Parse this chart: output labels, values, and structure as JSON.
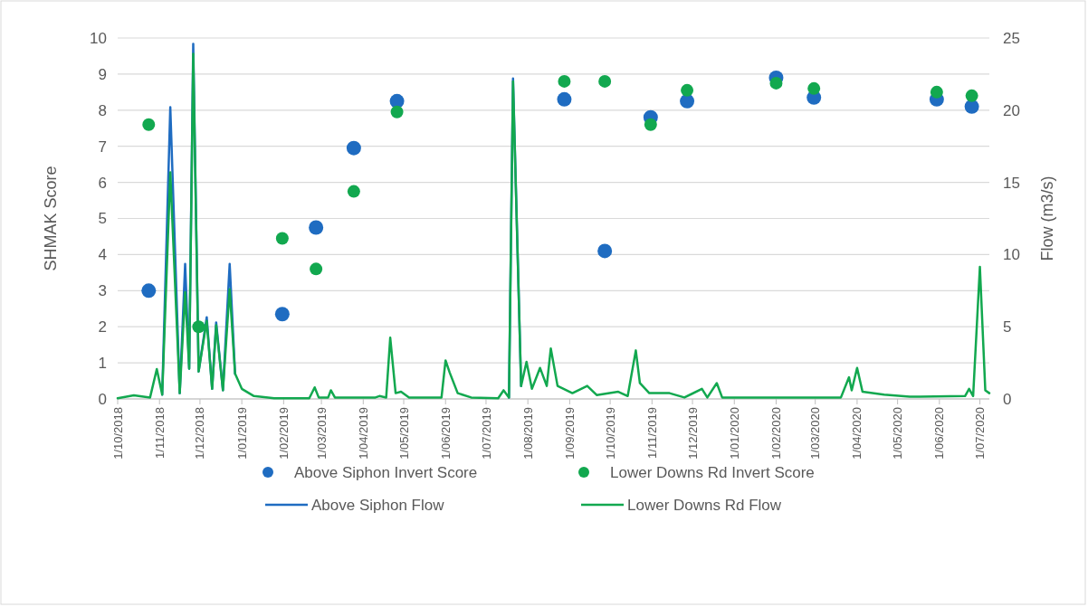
{
  "chart_data": {
    "type": "line",
    "ylabel": "SHMAK Score",
    "y2label": "Flow (m3/s)",
    "xlim": [
      "2018-10-01",
      "2020-07-08"
    ],
    "xticks": [
      {
        "value": "2018-10-01",
        "label": "1/10/2018"
      },
      {
        "value": "2018-11-01",
        "label": "1/11/2018"
      },
      {
        "value": "2018-12-01",
        "label": "1/12/2018"
      },
      {
        "value": "2019-01-01",
        "label": "1/01/2019"
      },
      {
        "value": "2019-02-01",
        "label": "1/02/2019"
      },
      {
        "value": "2019-03-01",
        "label": "1/03/2019"
      },
      {
        "value": "2019-04-01",
        "label": "1/04/2019"
      },
      {
        "value": "2019-05-01",
        "label": "1/05/2019"
      },
      {
        "value": "2019-06-01",
        "label": "1/06/2019"
      },
      {
        "value": "2019-07-01",
        "label": "1/07/2019"
      },
      {
        "value": "2019-08-01",
        "label": "1/08/2019"
      },
      {
        "value": "2019-09-01",
        "label": "1/09/2019"
      },
      {
        "value": "2019-10-01",
        "label": "1/10/2019"
      },
      {
        "value": "2019-11-01",
        "label": "1/11/2019"
      },
      {
        "value": "2019-12-01",
        "label": "1/12/2019"
      },
      {
        "value": "2020-01-01",
        "label": "1/01/2020"
      },
      {
        "value": "2020-02-01",
        "label": "1/02/2020"
      },
      {
        "value": "2020-03-01",
        "label": "1/03/2020"
      },
      {
        "value": "2020-04-01",
        "label": "1/04/2020"
      },
      {
        "value": "2020-05-01",
        "label": "1/05/2020"
      },
      {
        "value": "2020-06-01",
        "label": "1/06/2020"
      },
      {
        "value": "2020-07-01",
        "label": "1/07/2020"
      }
    ],
    "ylim": [
      0,
      10
    ],
    "yticks": [
      0,
      1,
      2,
      3,
      4,
      5,
      6,
      7,
      8,
      9,
      10
    ],
    "y2lim": [
      0,
      25
    ],
    "y2ticks": [
      0,
      5,
      10,
      15,
      20,
      25
    ],
    "grid": "y",
    "legend": "bottom",
    "series": [
      {
        "name": "Above Siphon Invert Score",
        "type": "scatter",
        "marker": "circle",
        "color": "#1f6cc1",
        "x": [
          "2018-10-24",
          "2019-01-31",
          "2019-02-25",
          "2019-03-25",
          "2019-04-26",
          "2019-08-28",
          "2019-09-27",
          "2019-10-31",
          "2019-11-27",
          "2020-02-01",
          "2020-02-29",
          "2020-05-30",
          "2020-06-25"
        ],
        "values": [
          3.0,
          2.35,
          4.75,
          6.95,
          8.25,
          8.3,
          4.1,
          7.8,
          8.25,
          8.9,
          8.35,
          8.3,
          8.1
        ]
      },
      {
        "name": "Lower Downs Rd Invert Score",
        "type": "scatter",
        "marker": "circle",
        "color": "#12a84f",
        "x": [
          "2018-10-24",
          "2018-11-30",
          "2019-01-31",
          "2019-02-25",
          "2019-03-25",
          "2019-04-26",
          "2019-08-28",
          "2019-09-27",
          "2019-10-31",
          "2019-11-27",
          "2020-02-01",
          "2020-02-29",
          "2020-05-30",
          "2020-06-25"
        ],
        "values": [
          7.6,
          2.0,
          4.45,
          3.6,
          5.75,
          7.95,
          8.8,
          8.8,
          7.6,
          8.55,
          8.75,
          8.6,
          8.5,
          8.4
        ]
      },
      {
        "name": "Above Siphon Flow",
        "type": "line",
        "axis": "y2",
        "color": "#1f6cc1",
        "x": [
          "2018-11-03",
          "2018-11-09",
          "2018-11-16",
          "2018-11-20",
          "2018-11-23",
          "2018-11-26",
          "2018-11-30",
          "2018-12-06",
          "2018-12-10",
          "2018-12-13",
          "2018-12-18",
          "2018-12-23",
          "2018-12-27",
          "2019-01-01",
          "2019-07-18",
          "2019-07-21",
          "2019-07-27"
        ],
        "values": [
          0.3,
          20.2,
          0.4,
          9.35,
          2.1,
          24.6,
          1.9,
          5.66,
          0.7,
          5.3,
          0.6,
          9.35,
          1.75,
          null,
          0.1,
          22.2,
          0.9
        ]
      },
      {
        "name": "Lower Downs Rd Flow",
        "axis": "y2",
        "color": "#12a84f",
        "x": [
          "2018-10-01",
          "2018-10-13",
          "2018-10-25",
          "2018-10-30",
          "2018-11-03",
          "2018-11-09",
          "2018-11-16",
          "2018-11-20",
          "2018-11-23",
          "2018-11-26",
          "2018-11-30",
          "2018-12-06",
          "2018-12-10",
          "2018-12-13",
          "2018-12-18",
          "2018-12-23",
          "2018-12-27",
          "2019-01-01",
          "2019-01-10",
          "2019-01-25",
          "2019-02-20",
          "2019-02-24",
          "2019-02-27",
          "2019-03-06",
          "2019-03-08",
          "2019-03-11",
          "2019-04-10",
          "2019-04-13",
          "2019-04-18",
          "2019-04-21",
          "2019-04-25",
          "2019-04-29",
          "2019-05-05",
          "2019-05-29",
          "2019-06-01",
          "2019-06-04",
          "2019-06-10",
          "2019-06-20",
          "2019-07-10",
          "2019-07-14",
          "2019-07-18",
          "2019-07-21",
          "2019-07-27",
          "2019-07-31",
          "2019-08-04",
          "2019-08-10",
          "2019-08-15",
          "2019-08-18",
          "2019-08-23",
          "2019-09-03",
          "2019-09-14",
          "2019-09-21",
          "2019-10-07",
          "2019-10-14",
          "2019-10-20",
          "2019-10-23",
          "2019-10-30",
          "2019-11-14",
          "2019-11-25",
          "2019-12-08",
          "2019-12-12",
          "2019-12-19",
          "2019-12-23",
          "2020-03-20",
          "2020-03-26",
          "2020-03-28",
          "2020-04-01",
          "2020-04-05",
          "2020-04-21",
          "2020-05-10",
          "2020-06-20",
          "2020-06-23",
          "2020-06-26",
          "2020-07-01",
          "2020-07-05",
          "2020-07-08"
        ],
        "values": [
          0.05,
          0.25,
          0.1,
          2.07,
          0.3,
          15.7,
          0.4,
          7.4,
          2.1,
          23.9,
          1.9,
          5.4,
          0.7,
          5.1,
          0.6,
          7.6,
          1.75,
          0.7,
          0.2,
          0.05,
          0.05,
          0.8,
          0.1,
          0.1,
          0.6,
          0.1,
          0.1,
          0.2,
          0.1,
          4.24,
          0.4,
          0.5,
          0.1,
          0.1,
          2.67,
          1.84,
          0.4,
          0.1,
          0.05,
          0.6,
          0.1,
          22.0,
          0.9,
          2.57,
          0.7,
          2.15,
          0.9,
          3.5,
          0.9,
          0.4,
          0.9,
          0.27,
          0.5,
          0.2,
          3.36,
          1.1,
          0.4,
          0.4,
          0.1,
          0.7,
          0.1,
          1.1,
          0.1,
          0.1,
          1.5,
          0.6,
          2.15,
          0.5,
          0.3,
          0.15,
          0.2,
          0.7,
          0.2,
          9.15,
          0.6,
          0.4
        ]
      }
    ]
  }
}
